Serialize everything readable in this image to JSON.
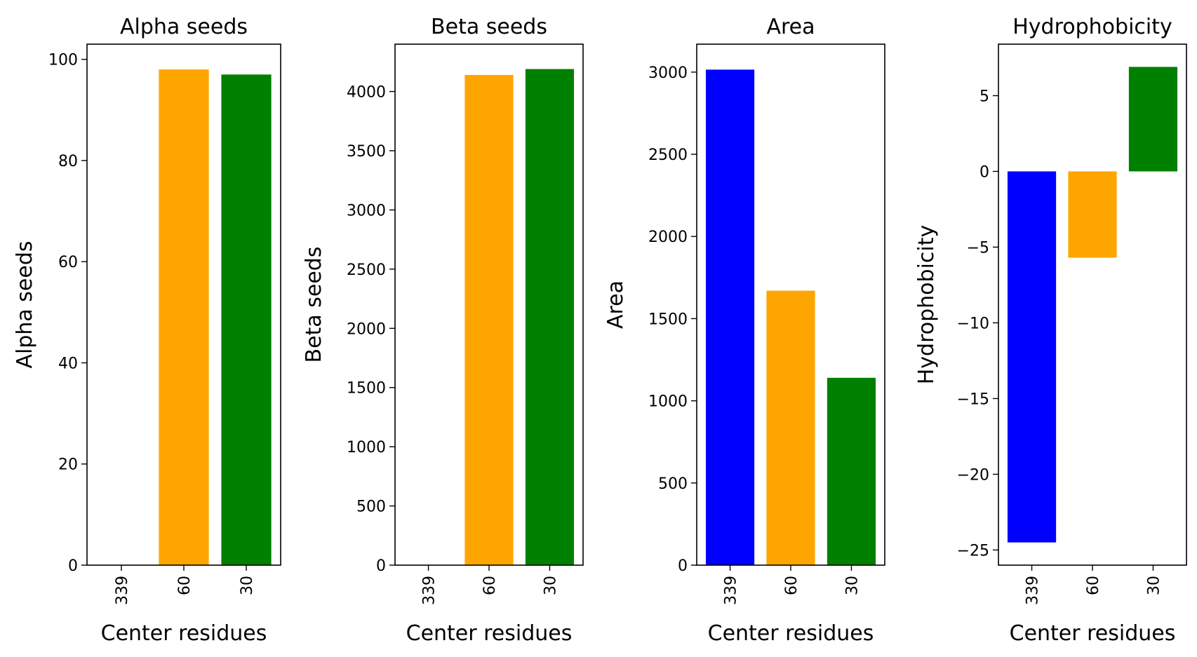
{
  "chart_data": [
    {
      "type": "bar",
      "title": "Alpha seeds",
      "xlabel": "Center residues",
      "ylabel": "Alpha seeds",
      "categories": [
        "339",
        "60",
        "30"
      ],
      "values": [
        0,
        98,
        97
      ],
      "colors": [
        "#0000ff",
        "#ffa500",
        "#008000"
      ],
      "ylim": [
        0,
        103
      ],
      "yticks": [
        0,
        20,
        40,
        60,
        80,
        100
      ],
      "ytick_labels": [
        "0",
        "20",
        "40",
        "60",
        "80",
        "100"
      ],
      "grid": false
    },
    {
      "type": "bar",
      "title": "Beta seeds",
      "xlabel": "Center residues",
      "ylabel": "Beta seeds",
      "categories": [
        "339",
        "60",
        "30"
      ],
      "values": [
        0,
        4140,
        4190
      ],
      "colors": [
        "#0000ff",
        "#ffa500",
        "#008000"
      ],
      "ylim": [
        0,
        4400
      ],
      "yticks": [
        0,
        500,
        1000,
        1500,
        2000,
        2500,
        3000,
        3500,
        4000
      ],
      "ytick_labels": [
        "0",
        "500",
        "1000",
        "1500",
        "2000",
        "2500",
        "3000",
        "3500",
        "4000"
      ],
      "grid": false
    },
    {
      "type": "bar",
      "title": "Area",
      "xlabel": "Center residues",
      "ylabel": "Area",
      "categories": [
        "339",
        "60",
        "30"
      ],
      "values": [
        3015,
        1670,
        1140
      ],
      "colors": [
        "#0000ff",
        "#ffa500",
        "#008000"
      ],
      "ylim": [
        0,
        3170
      ],
      "yticks": [
        0,
        500,
        1000,
        1500,
        2000,
        2500,
        3000
      ],
      "ytick_labels": [
        "0",
        "500",
        "1000",
        "1500",
        "2000",
        "2500",
        "3000"
      ],
      "grid": false
    },
    {
      "type": "bar",
      "title": "Hydrophobicity",
      "xlabel": "Center residues",
      "ylabel": "Hydrophobicity",
      "categories": [
        "339",
        "60",
        "30"
      ],
      "values": [
        -24.5,
        -5.7,
        6.9
      ],
      "colors": [
        "#0000ff",
        "#ffa500",
        "#008000"
      ],
      "ylim": [
        -26.0,
        8.4
      ],
      "yticks": [
        -25,
        -20,
        -15,
        -10,
        -5,
        0,
        5
      ],
      "ytick_labels": [
        "−25",
        "−20",
        "−15",
        "−10",
        "−5",
        "0",
        "5"
      ],
      "grid": false
    }
  ]
}
